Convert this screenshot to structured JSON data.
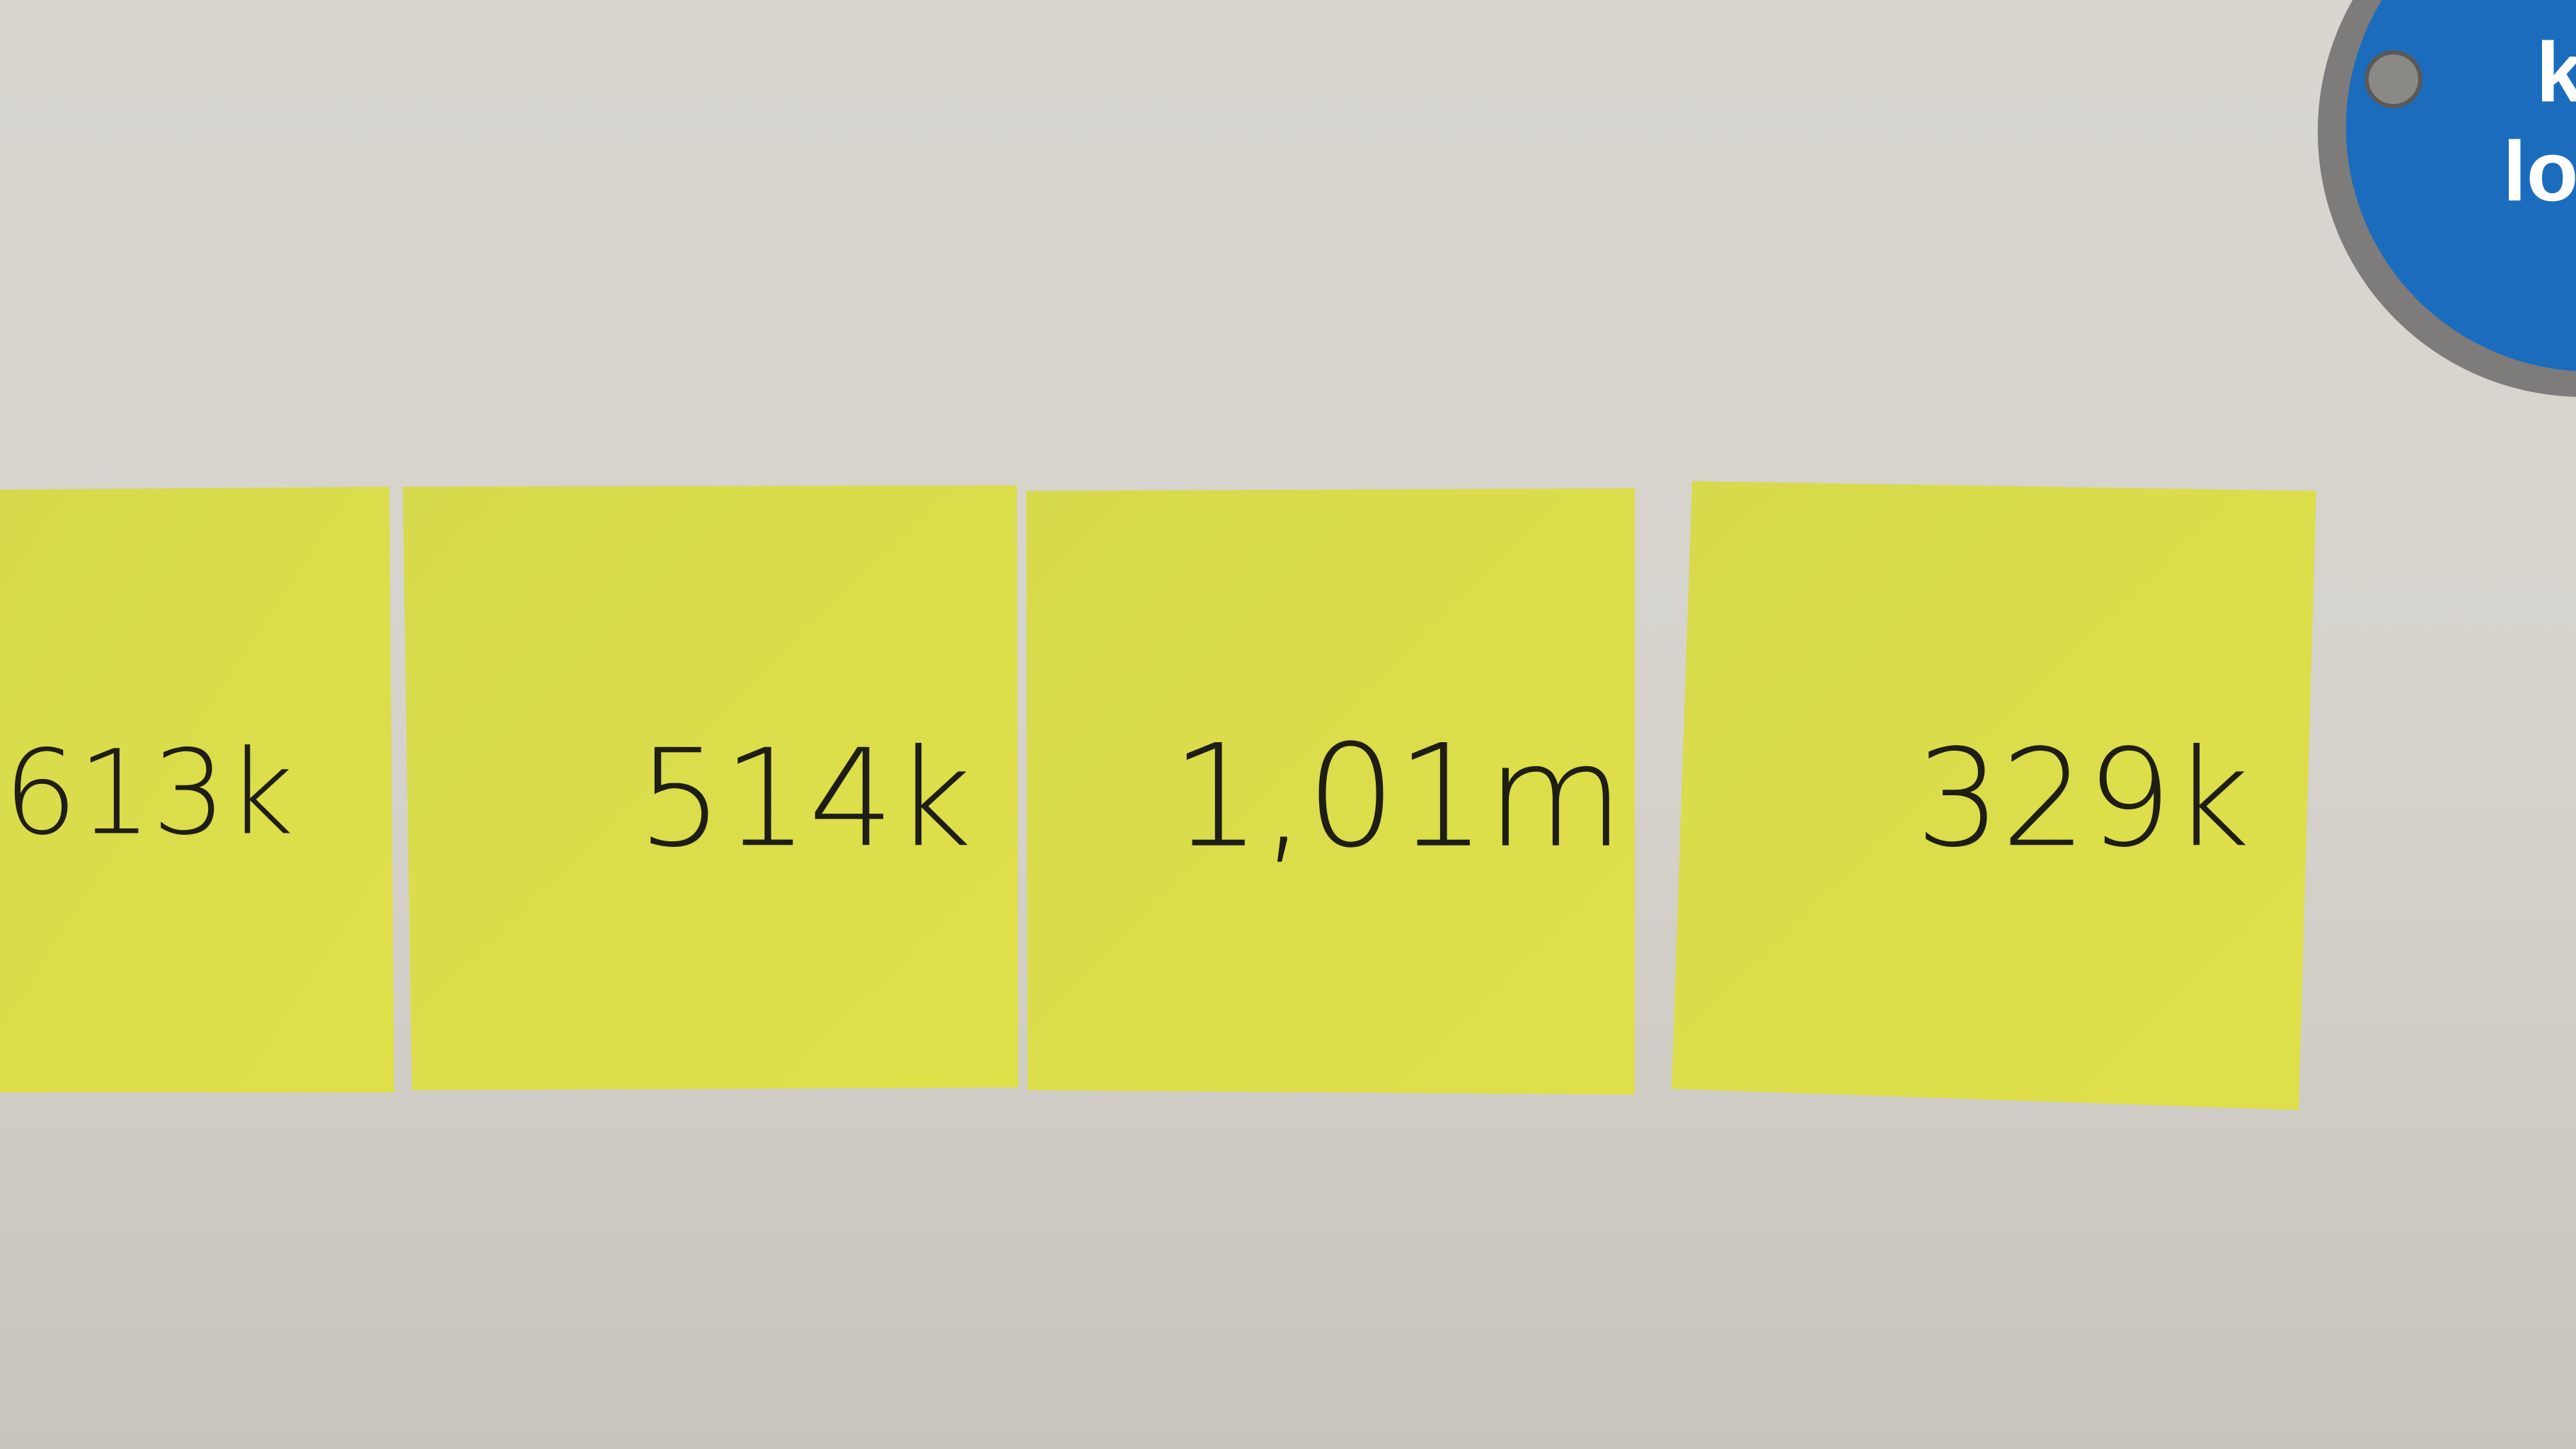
{
  "notes": [
    {
      "label": "613k"
    },
    {
      "label": "514k"
    },
    {
      "label": "1,01m"
    },
    {
      "label": "329k"
    }
  ],
  "sign": {
    "lines": [
      "k",
      "lo"
    ]
  }
}
